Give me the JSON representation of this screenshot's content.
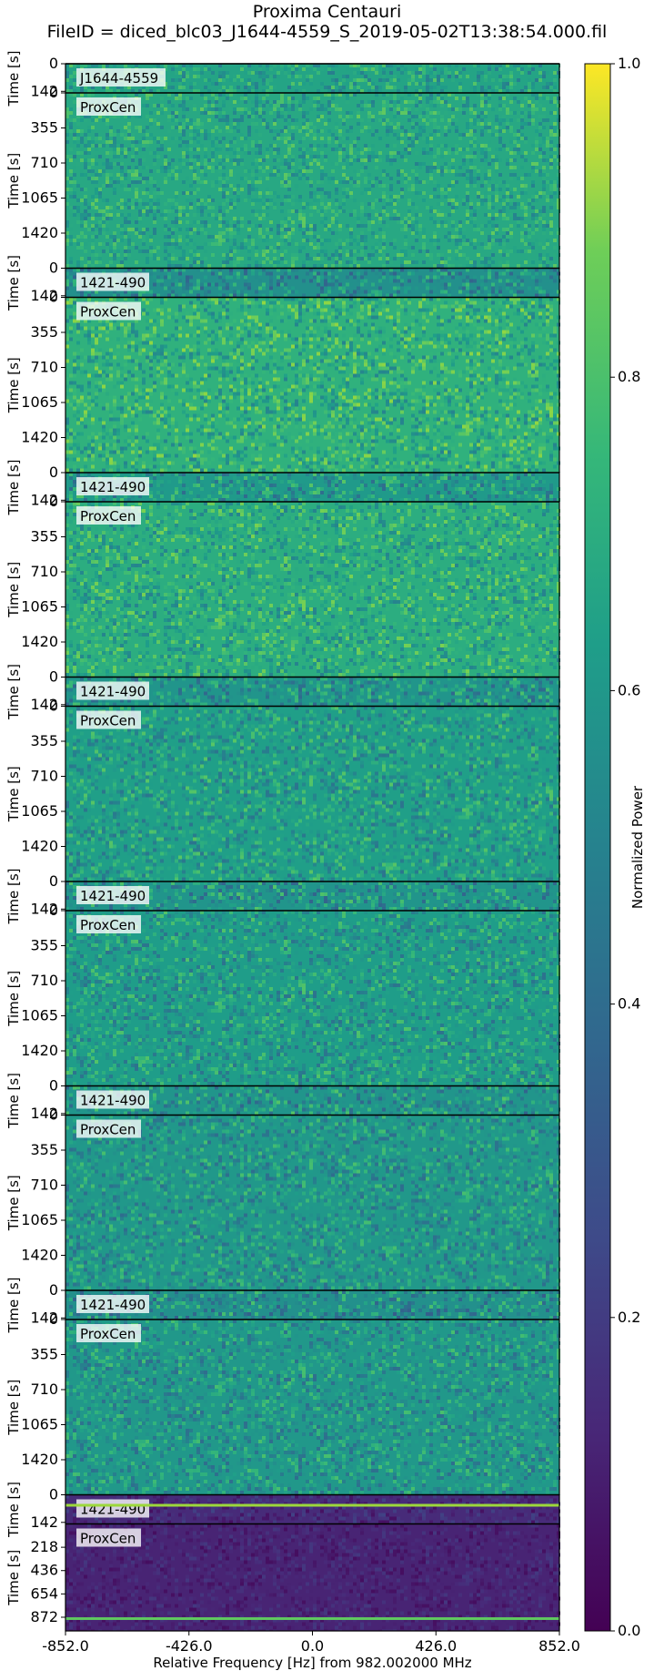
{
  "chart_data": {
    "type": "heatmap",
    "title": "Proxima Centauri",
    "subtitle": "FileID = diced_blc03_J1644-4559_S_2019-05-02T13:38:54.000.fil",
    "xlabel": "Relative Frequency [Hz] from 982.002000 MHz",
    "ylabel": "Time [s]",
    "x_ticks": [
      "-852.0",
      "-426.0",
      "0.0",
      "426.0",
      "852.0"
    ],
    "xlim": [
      -852.0,
      852.0
    ],
    "colorbar": {
      "label": "Normalized Power",
      "ticks": [
        "0.0",
        "0.2",
        "0.4",
        "0.6",
        "0.8",
        "1.0"
      ],
      "range": [
        0.0,
        1.0
      ],
      "colormap": "viridis"
    },
    "panels": [
      {
        "label": "J1644-4559",
        "y_ticks": [
          "0",
          "142"
        ],
        "y_range": [
          0,
          150
        ],
        "mean_power": 0.58,
        "contrast": 0.1
      },
      {
        "label": "ProxCen",
        "y_ticks": [
          "0",
          "355",
          "710",
          "1065",
          "1420"
        ],
        "y_range": [
          0,
          1775
        ],
        "mean_power": 0.6,
        "contrast": 0.1
      },
      {
        "label": "1421-490",
        "y_ticks": [
          "0",
          "142"
        ],
        "y_range": [
          0,
          150
        ],
        "mean_power": 0.5,
        "contrast": 0.12
      },
      {
        "label": "ProxCen",
        "y_ticks": [
          "0",
          "355",
          "710",
          "1065",
          "1420"
        ],
        "y_range": [
          0,
          1775
        ],
        "mean_power": 0.64,
        "contrast": 0.12
      },
      {
        "label": "1421-490",
        "y_ticks": [
          "0",
          "142"
        ],
        "y_range": [
          0,
          150
        ],
        "mean_power": 0.54,
        "contrast": 0.12
      },
      {
        "label": "ProxCen",
        "y_ticks": [
          "0",
          "355",
          "710",
          "1065",
          "1420"
        ],
        "y_range": [
          0,
          1775
        ],
        "mean_power": 0.62,
        "contrast": 0.11
      },
      {
        "label": "1421-490",
        "y_ticks": [
          "0",
          "142"
        ],
        "y_range": [
          0,
          150
        ],
        "mean_power": 0.52,
        "contrast": 0.12
      },
      {
        "label": "ProxCen",
        "y_ticks": [
          "0",
          "355",
          "710",
          "1065",
          "1420"
        ],
        "y_range": [
          0,
          1775
        ],
        "mean_power": 0.56,
        "contrast": 0.11
      },
      {
        "label": "1421-490",
        "y_ticks": [
          "0",
          "142"
        ],
        "y_range": [
          0,
          150
        ],
        "mean_power": 0.52,
        "contrast": 0.13
      },
      {
        "label": "ProxCen",
        "y_ticks": [
          "0",
          "355",
          "710",
          "1065",
          "1420"
        ],
        "y_range": [
          0,
          1775
        ],
        "mean_power": 0.55,
        "contrast": 0.11
      },
      {
        "label": "1421-490",
        "y_ticks": [
          "0",
          "142"
        ],
        "y_range": [
          0,
          150
        ],
        "mean_power": 0.52,
        "contrast": 0.13
      },
      {
        "label": "ProxCen",
        "y_ticks": [
          "0",
          "355",
          "710",
          "1065",
          "1420"
        ],
        "y_range": [
          0,
          1775
        ],
        "mean_power": 0.53,
        "contrast": 0.11
      },
      {
        "label": "1421-490",
        "y_ticks": [
          "0",
          "142"
        ],
        "y_range": [
          0,
          150
        ],
        "mean_power": 0.5,
        "contrast": 0.13
      },
      {
        "label": "ProxCen",
        "y_ticks": [
          "0",
          "355",
          "710",
          "1065",
          "1420"
        ],
        "y_range": [
          0,
          1775
        ],
        "mean_power": 0.53,
        "contrast": 0.11
      },
      {
        "label": "1421-490",
        "y_ticks": [
          "0",
          "142"
        ],
        "y_range": [
          0,
          150
        ],
        "mean_power": 0.12,
        "contrast": 0.05
      },
      {
        "label": "ProxCen",
        "y_ticks": [
          "218",
          "436",
          "654",
          "872"
        ],
        "y_range": [
          0,
          1000
        ],
        "mean_power": 0.1,
        "contrast": 0.04
      }
    ]
  }
}
